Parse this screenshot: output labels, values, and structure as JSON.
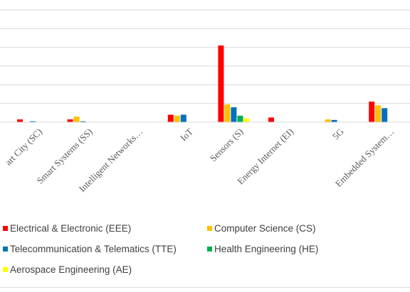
{
  "chart_data": {
    "type": "bar",
    "categories": [
      "art City (SC)",
      "Smart Systems (SS)",
      "Intelligent Networks…",
      "IoT",
      "Sensors (S)",
      "Energy Internet (EI)",
      "5G",
      "Embedded System…"
    ],
    "series": [
      {
        "name": "Electrical & Electronic (EEE)",
        "color": "#ff0000",
        "values": [
          1.5,
          1.5,
          0,
          4,
          41,
          2.5,
          0,
          11
        ]
      },
      {
        "name": "Computer Science (CS)",
        "color": "#ffc000",
        "values": [
          0,
          3,
          0,
          3.5,
          9.5,
          0,
          1.5,
          9
        ]
      },
      {
        "name": "Telecommunication & Telematics (TTE)",
        "color": "#0070c0",
        "values": [
          0.5,
          0.5,
          0,
          4,
          8,
          0,
          1.2,
          7.5
        ]
      },
      {
        "name": "Health Engineering (HE)",
        "color": "#00b050",
        "values": [
          0,
          0,
          0,
          0,
          3.5,
          0,
          0,
          0
        ]
      },
      {
        "name": "Aerospace Engineering (AE)",
        "color": "#ffff00",
        "values": [
          0,
          0,
          0,
          0,
          2,
          0,
          0,
          0
        ]
      }
    ],
    "ylim": [
      0,
      60
    ],
    "grid": true,
    "legend_position": "bottom"
  }
}
